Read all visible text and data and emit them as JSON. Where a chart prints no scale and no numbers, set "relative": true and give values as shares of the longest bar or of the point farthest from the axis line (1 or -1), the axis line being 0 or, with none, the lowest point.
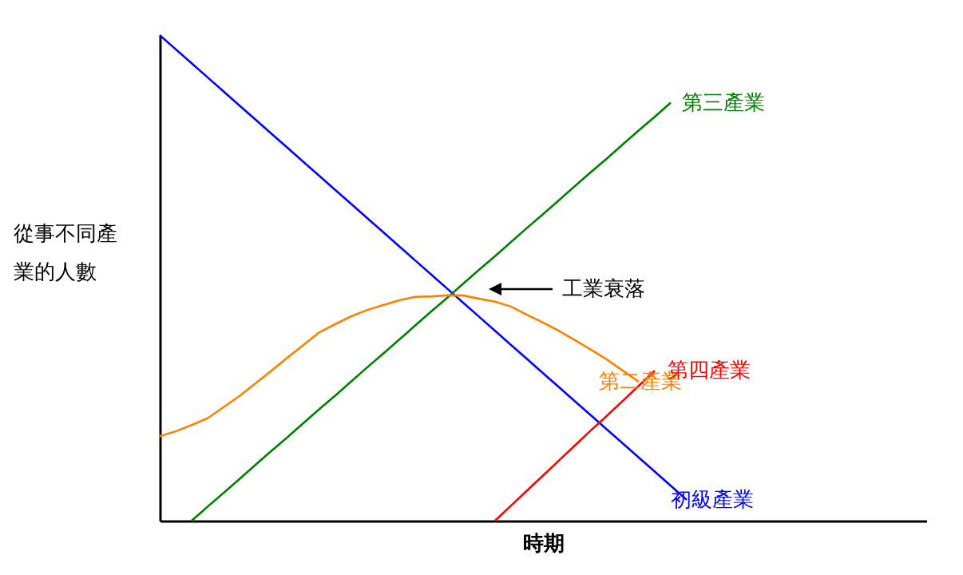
{
  "chart_data": {
    "type": "line",
    "relative": true,
    "xlabel": "時期",
    "ylabel": "從事不同產業的人數",
    "tick_labels": false,
    "grid": false,
    "legend": false,
    "marker": "none",
    "line_style": "solid",
    "categories": [
      null,
      null,
      null,
      null,
      null,
      null,
      null,
      null,
      null,
      null,
      null,
      null,
      null,
      null,
      null,
      null,
      null,
      null,
      null,
      null,
      null,
      null,
      null,
      null,
      null,
      null,
      null,
      null,
      null,
      null,
      null,
      null,
      null,
      null,
      null,
      null,
      null,
      null,
      null,
      null,
      null,
      null,
      null,
      null,
      null,
      null,
      null,
      null,
      null
    ],
    "series": [
      {
        "name": "初級產業",
        "color": "#0000ff",
        "values": [
          1,
          0.971,
          0.942,
          0.913,
          0.884,
          0.855,
          0.826,
          0.797,
          0.768,
          0.739,
          0.71,
          0.681,
          0.652,
          0.623,
          0.594,
          0.565,
          0.536,
          0.507,
          0.478,
          0.449,
          0.42,
          0.391,
          0.362,
          0.333,
          0.304,
          0.275,
          0.246,
          0.217,
          0.188,
          0.159,
          0.13,
          0.101,
          0.072,
          0.043,
          null,
          null,
          null,
          null,
          null,
          null,
          null,
          null,
          null,
          null,
          null,
          null,
          null,
          null,
          null
        ]
      },
      {
        "name": "第三產業",
        "color": "#008000",
        "values": [
          null,
          null,
          0,
          0.029,
          0.057,
          0.086,
          0.115,
          0.144,
          0.172,
          0.201,
          0.23,
          0.258,
          0.287,
          0.316,
          0.344,
          0.373,
          0.402,
          0.431,
          0.459,
          0.488,
          0.517,
          0.545,
          0.574,
          0.603,
          0.631,
          0.66,
          0.689,
          0.718,
          0.746,
          0.775,
          0.804,
          0.832,
          0.861,
          null,
          null,
          null,
          null,
          null,
          null,
          null,
          null,
          null,
          null,
          null,
          null,
          null,
          null,
          null,
          null
        ]
      },
      {
        "name": "第二產業",
        "color": "#ff8000",
        "values": [
          0.174,
          0.184,
          0.197,
          0.211,
          0.234,
          0.257,
          0.283,
          0.309,
          0.336,
          0.362,
          0.388,
          0.405,
          0.421,
          0.434,
          0.444,
          0.454,
          0.461,
          0.462,
          0.464,
          0.464,
          0.457,
          0.451,
          0.441,
          0.424,
          0.408,
          0.391,
          0.372,
          0.352,
          0.332,
          0.309,
          0.286,
          null,
          null,
          null,
          null,
          null,
          null,
          null,
          null,
          null,
          null,
          null,
          null,
          null,
          null,
          null,
          null,
          null,
          null
        ]
      },
      {
        "name": "第四產業",
        "color": "#ff0000",
        "values": [
          null,
          null,
          null,
          null,
          null,
          null,
          null,
          null,
          null,
          null,
          null,
          null,
          null,
          null,
          null,
          null,
          null,
          null,
          null,
          null,
          null,
          0,
          0.031,
          0.062,
          0.093,
          0.124,
          0.155,
          0.186,
          0.216,
          0.247,
          0.278,
          0.309,
          null,
          null,
          null,
          null,
          null,
          null,
          null,
          null,
          null,
          null,
          null,
          null,
          null,
          null,
          null,
          null,
          null
        ]
      }
    ],
    "annotations": [
      "工業衰落"
    ]
  }
}
